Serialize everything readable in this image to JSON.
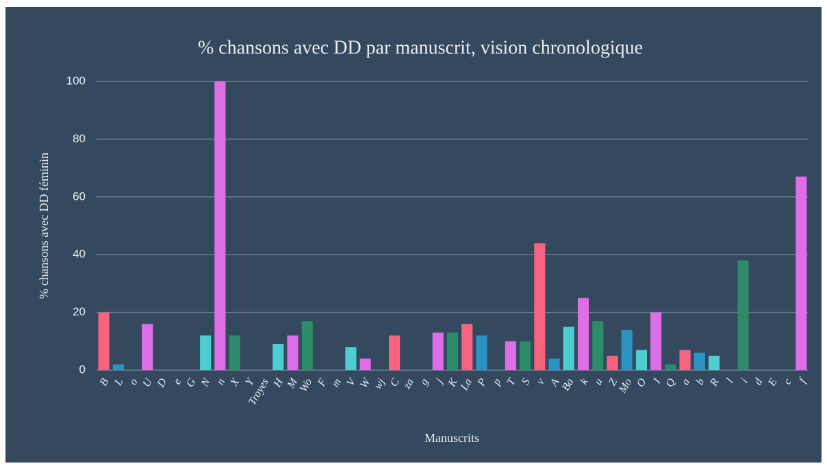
{
  "chart_data": {
    "type": "bar",
    "title": "% chansons avec DD par manuscrit, vision chronologique",
    "xlabel": "Manuscrits",
    "ylabel": "% chansons avec DD féminin",
    "categories": [
      "B",
      "L",
      "o",
      "U",
      "D",
      "e",
      "G",
      "N",
      "n",
      "X",
      "Y",
      "Troyes",
      "H",
      "M",
      "Wo",
      "F",
      "m",
      "V",
      "W",
      "wj",
      "C",
      "za",
      "g",
      "j",
      "K",
      "La",
      "P",
      "p",
      "T",
      "S",
      "v",
      "A",
      "Ba",
      "k",
      "u",
      "Z",
      "Mo",
      "O",
      "I",
      "Q",
      "a",
      "b",
      "R",
      "l",
      "i",
      "d",
      "E",
      "c",
      "f"
    ],
    "values": [
      20,
      2,
      0,
      16,
      0,
      0,
      0,
      12,
      100,
      12,
      0,
      0,
      9,
      12,
      17,
      0,
      0,
      8,
      4,
      0,
      12,
      0,
      0,
      13,
      13,
      16,
      12,
      0,
      10,
      10,
      44,
      4,
      15,
      25,
      17,
      5,
      14,
      7,
      20,
      2,
      7,
      6,
      5,
      0,
      38,
      0,
      0,
      0,
      67
    ],
    "colors": [
      "#f7647f",
      "#2e93c0",
      "#dd6ee8",
      "#dd6ee8",
      "#2d8b69",
      "#f7647f",
      "#2e93c0",
      "#4ecdd0",
      "#dd6ee8",
      "#2d8b69",
      "#f7647f",
      "#2e93c0",
      "#4ecdd0",
      "#dd6ee8",
      "#2d8b69",
      "#f7647f",
      "#2e93c0",
      "#4ecdd0",
      "#dd6ee8",
      "#2d8b69",
      "#f7647f",
      "#2e93c0",
      "#4ecdd0",
      "#dd6ee8",
      "#2d8b69",
      "#f7647f",
      "#2e93c0",
      "#4ecdd0",
      "#dd6ee8",
      "#2d8b69",
      "#f7647f",
      "#2e93c0",
      "#4ecdd0",
      "#dd6ee8",
      "#2d8b69",
      "#f7647f",
      "#2e93c0",
      "#4ecdd0",
      "#dd6ee8",
      "#2d8b69",
      "#f7647f",
      "#2e93c0",
      "#4ecdd0",
      "#dd6ee8",
      "#2d8b69",
      "#f7647f",
      "#2e93c0",
      "#4ecdd0",
      "#dd6ee8"
    ],
    "ylim": [
      0,
      100
    ],
    "yticks": [
      0,
      20,
      40,
      60,
      80,
      100
    ],
    "grid": true
  }
}
